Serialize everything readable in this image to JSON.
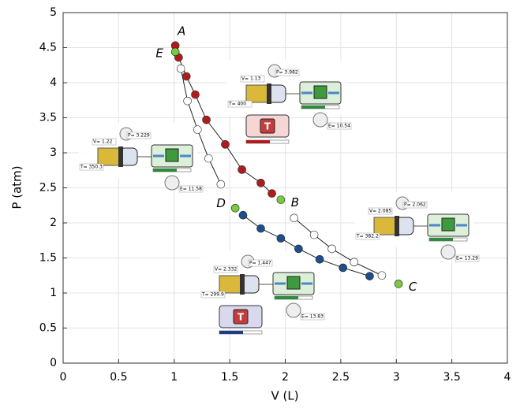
{
  "chart_data": {
    "type": "scatter",
    "x_label": "V (L)",
    "y_label": "P (atm)",
    "xlim": [
      0,
      4
    ],
    "ylim": [
      0,
      5
    ],
    "xticks": [
      0,
      0.5,
      1,
      1.5,
      2,
      2.5,
      3,
      3.5,
      4
    ],
    "yticks": [
      0,
      0.5,
      1,
      1.5,
      2,
      2.5,
      3,
      3.5,
      4,
      4.5,
      5
    ],
    "grid": true,
    "series": [
      {
        "color": "#b01c1c",
        "x": [
          1.04,
          1.11,
          1.19,
          1.29,
          1.46,
          1.61,
          1.78,
          1.88
        ],
        "y": [
          4.36,
          4.09,
          3.83,
          3.47,
          3.12,
          2.76,
          2.57,
          2.42
        ]
      },
      {
        "color": "#ffffff",
        "x": [
          2.08,
          2.26,
          2.42,
          2.62,
          2.87
        ],
        "y": [
          2.07,
          1.83,
          1.63,
          1.44,
          1.25
        ]
      },
      {
        "color": "#ffffff",
        "x": [
          1.06,
          1.12,
          1.21,
          1.31,
          1.42
        ],
        "y": [
          4.2,
          3.74,
          3.33,
          2.92,
          2.55
        ]
      },
      {
        "color": "#1f4e8c",
        "x": [
          1.62,
          1.78,
          1.96,
          2.12,
          2.31,
          2.52,
          2.76
        ],
        "y": [
          2.11,
          1.92,
          1.78,
          1.63,
          1.48,
          1.36,
          1.24
        ]
      }
    ],
    "labeled_points": [
      {
        "name": "A",
        "x": 1.01,
        "y": 4.53,
        "color": "#b01c1c"
      },
      {
        "name": "E",
        "x": 1.01,
        "y": 4.44,
        "color": "#7ac943"
      },
      {
        "name": "B",
        "x": 1.96,
        "y": 2.33,
        "color": "#7ac943"
      },
      {
        "name": "D",
        "x": 1.55,
        "y": 2.21,
        "color": "#7ac943"
      },
      {
        "name": "C",
        "x": 3.02,
        "y": 1.13,
        "color": "#7ac943"
      }
    ],
    "insets": [
      {
        "V": "V= 1.13",
        "P": "P= 3.982",
        "T": "T= 400",
        "E": "E= 10.54",
        "heater_label": "T",
        "heater_color": "#f6d5d5",
        "bar_color": "#b01c1c"
      },
      {
        "V": "V= 1.22",
        "P": "P= 3.229",
        "T": "T= 350.3",
        "E": "E= 11.58"
      },
      {
        "V": "V= 2.085",
        "P": "P= 2.062",
        "T": "T= 382.2",
        "E": "E= 13.29"
      },
      {
        "V": "V= 2.332",
        "P": "P= 1.447",
        "T": "T= 299.9",
        "E": "E= 13.83",
        "heater_label": "T",
        "heater_color": "#d9d9ee",
        "bar_color": "#1f3c8c"
      }
    ]
  }
}
